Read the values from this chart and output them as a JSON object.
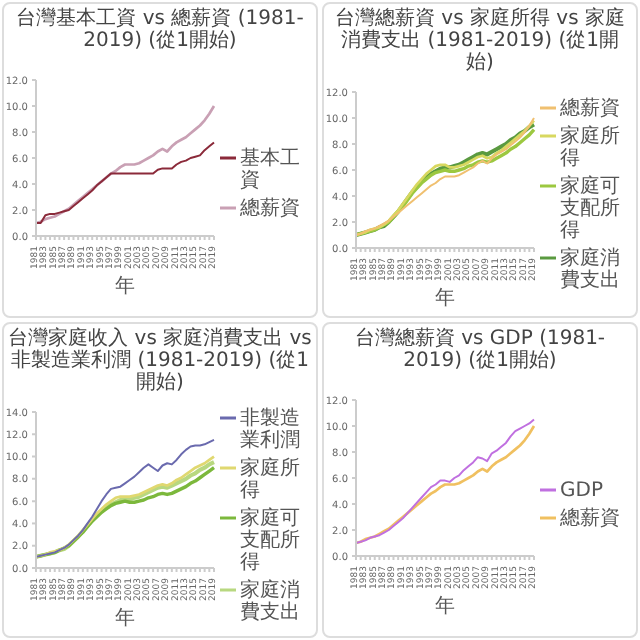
{
  "chart_data": [
    {
      "type": "line",
      "title": "台灣基本工資 vs 總薪資 (1981-2019) (從1開始)",
      "xlabel": "年",
      "legend": "right",
      "categories": [
        "1981",
        null,
        "1983",
        null,
        "1985",
        null,
        "1987",
        null,
        "1989",
        null,
        "1991",
        null,
        "1993",
        null,
        "1995",
        null,
        "1997",
        null,
        "1999",
        null,
        "2001",
        null,
        "2003",
        null,
        "2005",
        null,
        "2007",
        null,
        "2009",
        null,
        "2011",
        null,
        "2013",
        null,
        "2015",
        null,
        "2017",
        null,
        "2019"
      ],
      "ylim": [
        0,
        12
      ],
      "yticks": [
        {
          "value": 0,
          "label": "0.0"
        },
        {
          "value": 2,
          "label": "2.0"
        },
        {
          "value": 4,
          "label": "4.0"
        },
        {
          "value": 6,
          "label": "6.0"
        },
        {
          "value": 8,
          "label": "8.0"
        },
        {
          "value": 10,
          "label": "10.0"
        },
        {
          "value": 12,
          "label": "12.0"
        }
      ],
      "series": [
        {
          "name": "基本工資",
          "color": "#8b2a3a",
          "values": [
            1.0,
            1.0,
            1.6,
            1.7,
            1.7,
            1.8,
            1.9,
            2.0,
            2.3,
            2.6,
            2.9,
            3.2,
            3.5,
            3.9,
            4.2,
            4.5,
            4.8,
            4.8,
            4.8,
            4.8,
            4.8,
            4.8,
            4.8,
            4.8,
            4.8,
            4.8,
            5.1,
            5.2,
            5.2,
            5.2,
            5.5,
            5.7,
            5.8,
            6.0,
            6.1,
            6.2,
            6.6,
            6.9,
            7.2
          ]
        },
        {
          "name": "總薪資",
          "color": "#c9a0b4",
          "values": [
            1.0,
            1.1,
            1.3,
            1.4,
            1.5,
            1.7,
            1.9,
            2.1,
            2.4,
            2.7,
            3.0,
            3.3,
            3.6,
            3.9,
            4.2,
            4.5,
            4.8,
            5.0,
            5.3,
            5.5,
            5.5,
            5.5,
            5.6,
            5.8,
            6.0,
            6.2,
            6.5,
            6.7,
            6.5,
            6.9,
            7.2,
            7.4,
            7.6,
            7.9,
            8.2,
            8.5,
            8.9,
            9.4,
            10.0
          ]
        }
      ]
    },
    {
      "type": "line",
      "title": "台灣總薪資 vs 家庭所得 vs 家庭消費支出 (1981-2019) (從1開始)",
      "xlabel": "年",
      "legend": "right",
      "categories": [
        "1981",
        null,
        "1983",
        null,
        "1985",
        null,
        "1987",
        null,
        "1989",
        null,
        "1991",
        null,
        "1993",
        null,
        "1995",
        null,
        "1997",
        null,
        "1999",
        null,
        "2001",
        null,
        "2003",
        null,
        "2005",
        null,
        "2007",
        null,
        "2009",
        null,
        "2011",
        null,
        "2013",
        null,
        "2015",
        null,
        "2017",
        null,
        "2019"
      ],
      "ylim": [
        0,
        12
      ],
      "yticks": [
        {
          "value": 0,
          "label": "0.0"
        },
        {
          "value": 2,
          "label": "2.0"
        },
        {
          "value": 4,
          "label": "4.0"
        },
        {
          "value": 6,
          "label": "6.0"
        },
        {
          "value": 8,
          "label": "8.0"
        },
        {
          "value": 10,
          "label": "10.0"
        },
        {
          "value": 12,
          "label": "12.0"
        }
      ],
      "series": [
        {
          "name": "總薪資",
          "color": "#f0c070",
          "values": [
            1.0,
            1.1,
            1.3,
            1.4,
            1.5,
            1.7,
            1.9,
            2.1,
            2.4,
            2.7,
            3.0,
            3.3,
            3.6,
            3.9,
            4.2,
            4.5,
            4.8,
            5.0,
            5.3,
            5.5,
            5.5,
            5.5,
            5.6,
            5.8,
            6.0,
            6.2,
            6.5,
            6.7,
            6.5,
            6.9,
            7.2,
            7.4,
            7.6,
            7.9,
            8.2,
            8.5,
            8.9,
            9.4,
            10.0
          ]
        },
        {
          "name": "家庭所得",
          "color": "#d8d860",
          "values": [
            1.0,
            1.1,
            1.2,
            1.4,
            1.5,
            1.6,
            1.8,
            2.1,
            2.5,
            2.9,
            3.4,
            3.9,
            4.4,
            4.9,
            5.3,
            5.7,
            6.0,
            6.3,
            6.4,
            6.4,
            6.2,
            6.2,
            6.3,
            6.4,
            6.6,
            6.8,
            7.0,
            7.1,
            6.9,
            7.0,
            7.3,
            7.5,
            7.8,
            8.1,
            8.4,
            8.7,
            9.0,
            9.4,
            9.8
          ]
        },
        {
          "name": "家庭可支配所得",
          "color": "#9cc840",
          "values": [
            1.0,
            1.1,
            1.2,
            1.3,
            1.4,
            1.6,
            1.8,
            2.0,
            2.4,
            2.8,
            3.2,
            3.7,
            4.2,
            4.6,
            5.0,
            5.3,
            5.6,
            5.8,
            5.9,
            6.0,
            5.9,
            5.9,
            6.0,
            6.1,
            6.3,
            6.4,
            6.6,
            6.7,
            6.6,
            6.7,
            6.9,
            7.1,
            7.3,
            7.6,
            7.8,
            8.1,
            8.4,
            8.7,
            9.1
          ]
        },
        {
          "name": "家庭消費支出",
          "color": "#5a9a40",
          "values": [
            1.0,
            1.1,
            1.2,
            1.3,
            1.4,
            1.6,
            1.7,
            2.0,
            2.4,
            2.8,
            3.3,
            3.8,
            4.3,
            4.7,
            5.1,
            5.4,
            5.7,
            5.9,
            6.1,
            6.2,
            6.2,
            6.3,
            6.4,
            6.6,
            6.8,
            7.0,
            7.2,
            7.3,
            7.2,
            7.4,
            7.6,
            7.8,
            8.0,
            8.3,
            8.5,
            8.8,
            9.0,
            9.3,
            9.5
          ]
        }
      ]
    },
    {
      "type": "line",
      "title": "台灣家庭收入 vs 家庭消費支出 vs 非製造業利潤 (1981-2019) (從1開始)",
      "xlabel": "年",
      "legend": "right",
      "categories": [
        "1981",
        null,
        "1983",
        null,
        "1985",
        null,
        "1987",
        null,
        "1989",
        null,
        "1991",
        null,
        "1993",
        null,
        "1995",
        null,
        "1997",
        null,
        "1999",
        null,
        "2001",
        null,
        "2003",
        null,
        "2005",
        null,
        "2007",
        null,
        "2009",
        null,
        "2011",
        null,
        "2013",
        null,
        "2015",
        null,
        "2017",
        null,
        "2019"
      ],
      "ylim": [
        0,
        14
      ],
      "yticks": [
        {
          "value": 0,
          "label": "0.0"
        },
        {
          "value": 2,
          "label": "2.0"
        },
        {
          "value": 4,
          "label": "4.0"
        },
        {
          "value": 6,
          "label": "6.0"
        },
        {
          "value": 8,
          "label": "8.0"
        },
        {
          "value": 10,
          "label": "10.0"
        },
        {
          "value": 12,
          "label": "12.0"
        },
        {
          "value": 14,
          "label": "14.0"
        }
      ],
      "series": [
        {
          "name": "非製造業利潤",
          "color": "#6a6aae",
          "values": [
            1.0,
            1.1,
            1.2,
            1.3,
            1.4,
            1.6,
            1.8,
            2.1,
            2.5,
            2.9,
            3.4,
            4.0,
            4.6,
            5.3,
            6.0,
            6.6,
            7.1,
            7.2,
            7.3,
            7.6,
            7.9,
            8.2,
            8.6,
            9.0,
            9.3,
            9.0,
            8.7,
            9.2,
            9.4,
            9.3,
            9.7,
            10.2,
            10.6,
            10.9,
            11.0,
            11.0,
            11.1,
            11.3,
            11.5
          ]
        },
        {
          "name": "家庭所得",
          "color": "#e0d870",
          "values": [
            1.0,
            1.1,
            1.2,
            1.4,
            1.5,
            1.6,
            1.8,
            2.1,
            2.5,
            2.9,
            3.4,
            3.9,
            4.4,
            4.9,
            5.3,
            5.7,
            6.0,
            6.3,
            6.4,
            6.4,
            6.4,
            6.5,
            6.6,
            6.8,
            7.0,
            7.2,
            7.4,
            7.5,
            7.4,
            7.6,
            7.9,
            8.1,
            8.4,
            8.7,
            9.0,
            9.2,
            9.4,
            9.7,
            10.0
          ]
        },
        {
          "name": "家庭可支配所得",
          "color": "#7cb83c",
          "values": [
            1.0,
            1.1,
            1.2,
            1.3,
            1.4,
            1.6,
            1.8,
            2.0,
            2.4,
            2.8,
            3.2,
            3.7,
            4.2,
            4.6,
            5.0,
            5.3,
            5.6,
            5.8,
            5.9,
            6.0,
            5.9,
            5.9,
            6.0,
            6.1,
            6.3,
            6.4,
            6.6,
            6.7,
            6.6,
            6.7,
            6.9,
            7.1,
            7.3,
            7.6,
            7.8,
            8.1,
            8.4,
            8.7,
            9.0
          ]
        },
        {
          "name": "家庭消費支出",
          "color": "#b8d880",
          "values": [
            1.0,
            1.1,
            1.2,
            1.3,
            1.4,
            1.6,
            1.7,
            2.0,
            2.4,
            2.8,
            3.3,
            3.8,
            4.3,
            4.7,
            5.1,
            5.4,
            5.7,
            5.9,
            6.1,
            6.2,
            6.2,
            6.3,
            6.4,
            6.6,
            6.8,
            7.0,
            7.2,
            7.3,
            7.2,
            7.4,
            7.6,
            7.8,
            8.0,
            8.3,
            8.5,
            8.8,
            9.0,
            9.3,
            9.5
          ]
        }
      ]
    },
    {
      "type": "line",
      "title": "台灣總薪資 vs GDP (1981-2019) (從1開始)",
      "xlabel": "年",
      "legend": "right",
      "categories": [
        "1981",
        null,
        "1983",
        null,
        "1985",
        null,
        "1987",
        null,
        "1989",
        null,
        "1991",
        null,
        "1993",
        null,
        "1995",
        null,
        "1997",
        null,
        "1999",
        null,
        "2001",
        null,
        "2003",
        null,
        "2005",
        null,
        "2007",
        null,
        "2009",
        null,
        "2011",
        null,
        "2013",
        null,
        "2015",
        null,
        "2017",
        null,
        "2019"
      ],
      "ylim": [
        0,
        12
      ],
      "yticks": [
        {
          "value": 0,
          "label": "0.0"
        },
        {
          "value": 2,
          "label": "2.0"
        },
        {
          "value": 4,
          "label": "4.0"
        },
        {
          "value": 6,
          "label": "6.0"
        },
        {
          "value": 8,
          "label": "8.0"
        },
        {
          "value": 10,
          "label": "10.0"
        },
        {
          "value": 12,
          "label": "12.0"
        }
      ],
      "series": [
        {
          "name": "GDP",
          "color": "#c070e0",
          "values": [
            1.0,
            1.1,
            1.2,
            1.4,
            1.5,
            1.6,
            1.8,
            2.0,
            2.3,
            2.6,
            2.9,
            3.3,
            3.7,
            4.1,
            4.5,
            4.9,
            5.3,
            5.5,
            5.8,
            5.8,
            5.7,
            6.0,
            6.2,
            6.6,
            6.9,
            7.2,
            7.6,
            7.5,
            7.3,
            7.9,
            8.1,
            8.4,
            8.7,
            9.2,
            9.6,
            9.8,
            10.0,
            10.2,
            10.5
          ]
        },
        {
          "name": "總薪資",
          "color": "#f0c060",
          "values": [
            1.0,
            1.1,
            1.3,
            1.4,
            1.5,
            1.7,
            1.9,
            2.1,
            2.4,
            2.7,
            3.0,
            3.3,
            3.6,
            3.9,
            4.2,
            4.5,
            4.8,
            5.0,
            5.3,
            5.5,
            5.5,
            5.5,
            5.6,
            5.8,
            6.0,
            6.2,
            6.5,
            6.7,
            6.5,
            6.9,
            7.2,
            7.4,
            7.6,
            7.9,
            8.2,
            8.5,
            8.9,
            9.4,
            10.0
          ]
        }
      ]
    }
  ]
}
